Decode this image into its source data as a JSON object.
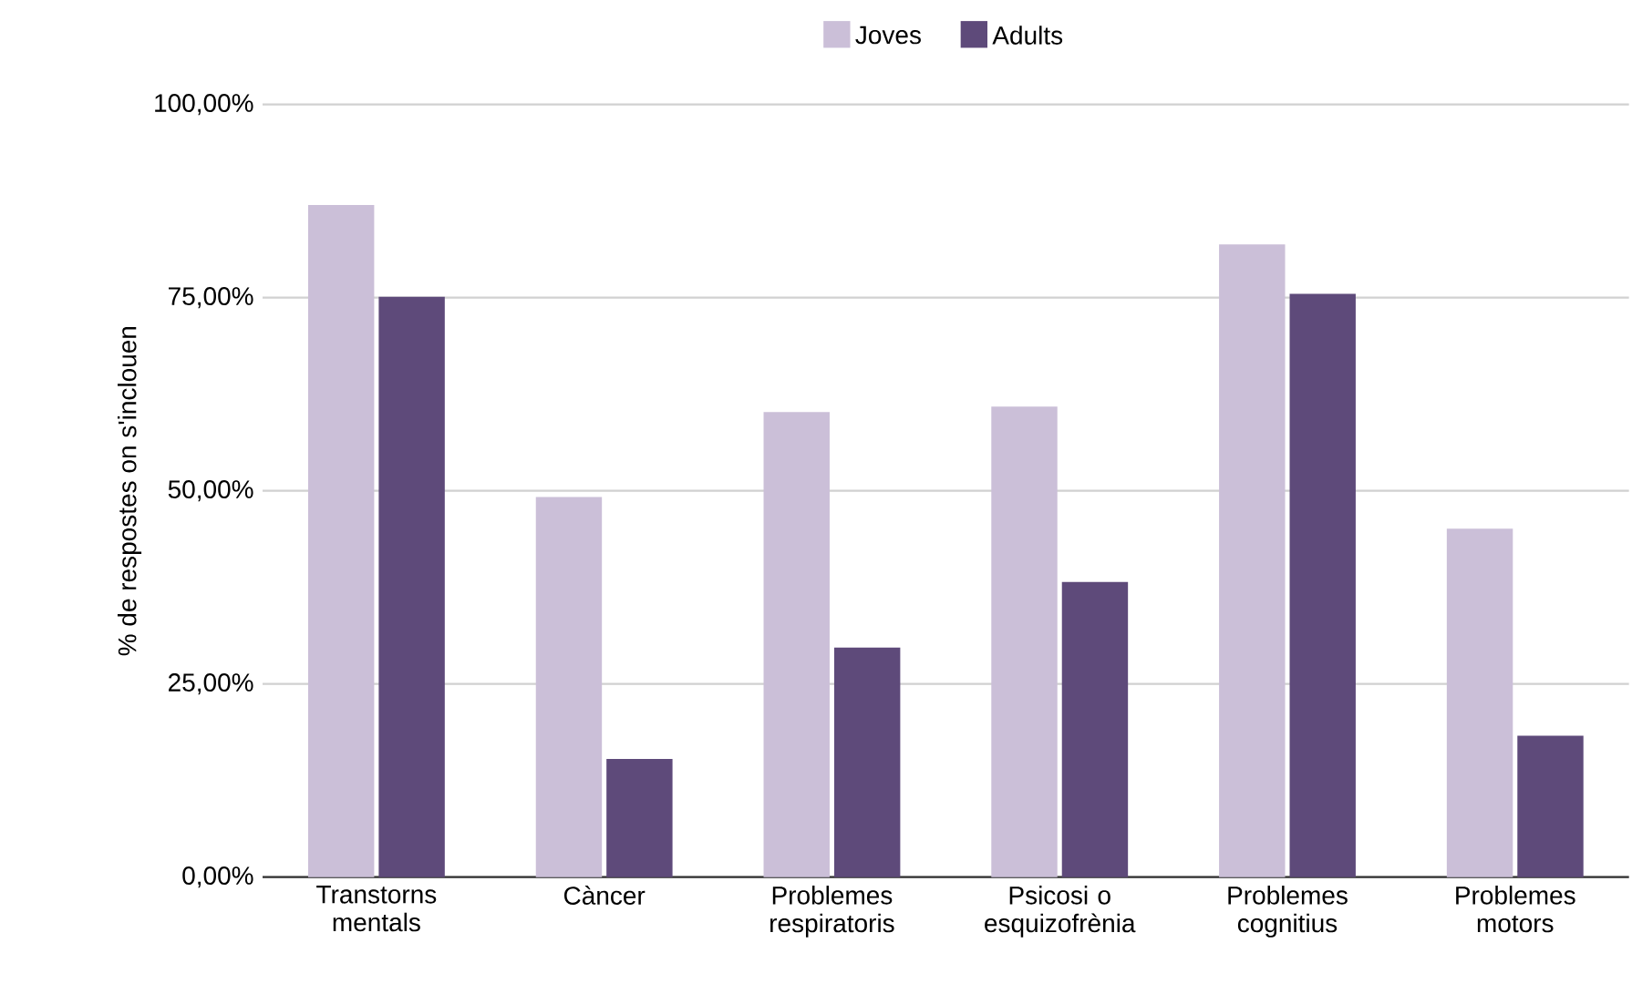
{
  "chart_data": {
    "type": "bar",
    "ylabel": "% de respostes on s'inclouen",
    "categories": [
      "Transtorns mentals",
      "Càncer",
      "Problemes respiratoris",
      "Psicosi o esquizofrènia",
      "Problemes cognitius",
      "Problemes motors"
    ],
    "series": [
      {
        "name": "Joves",
        "color": "#cbbfd8",
        "values": [
          87.0,
          49.2,
          60.2,
          60.9,
          81.9,
          45.1
        ]
      },
      {
        "name": "Adults",
        "color": "#5e4a7a",
        "values": [
          75.1,
          15.3,
          29.7,
          38.2,
          75.5,
          18.3
        ]
      }
    ],
    "ylim": [
      0,
      100
    ],
    "yticks": [
      {
        "value": 0,
        "label": "0,00%"
      },
      {
        "value": 25,
        "label": "25,00%"
      },
      {
        "value": 50,
        "label": "50,00%"
      },
      {
        "value": 75,
        "label": "75,00%"
      },
      {
        "value": 100,
        "label": "100,00%"
      }
    ],
    "grid": "y",
    "legend": "top"
  }
}
